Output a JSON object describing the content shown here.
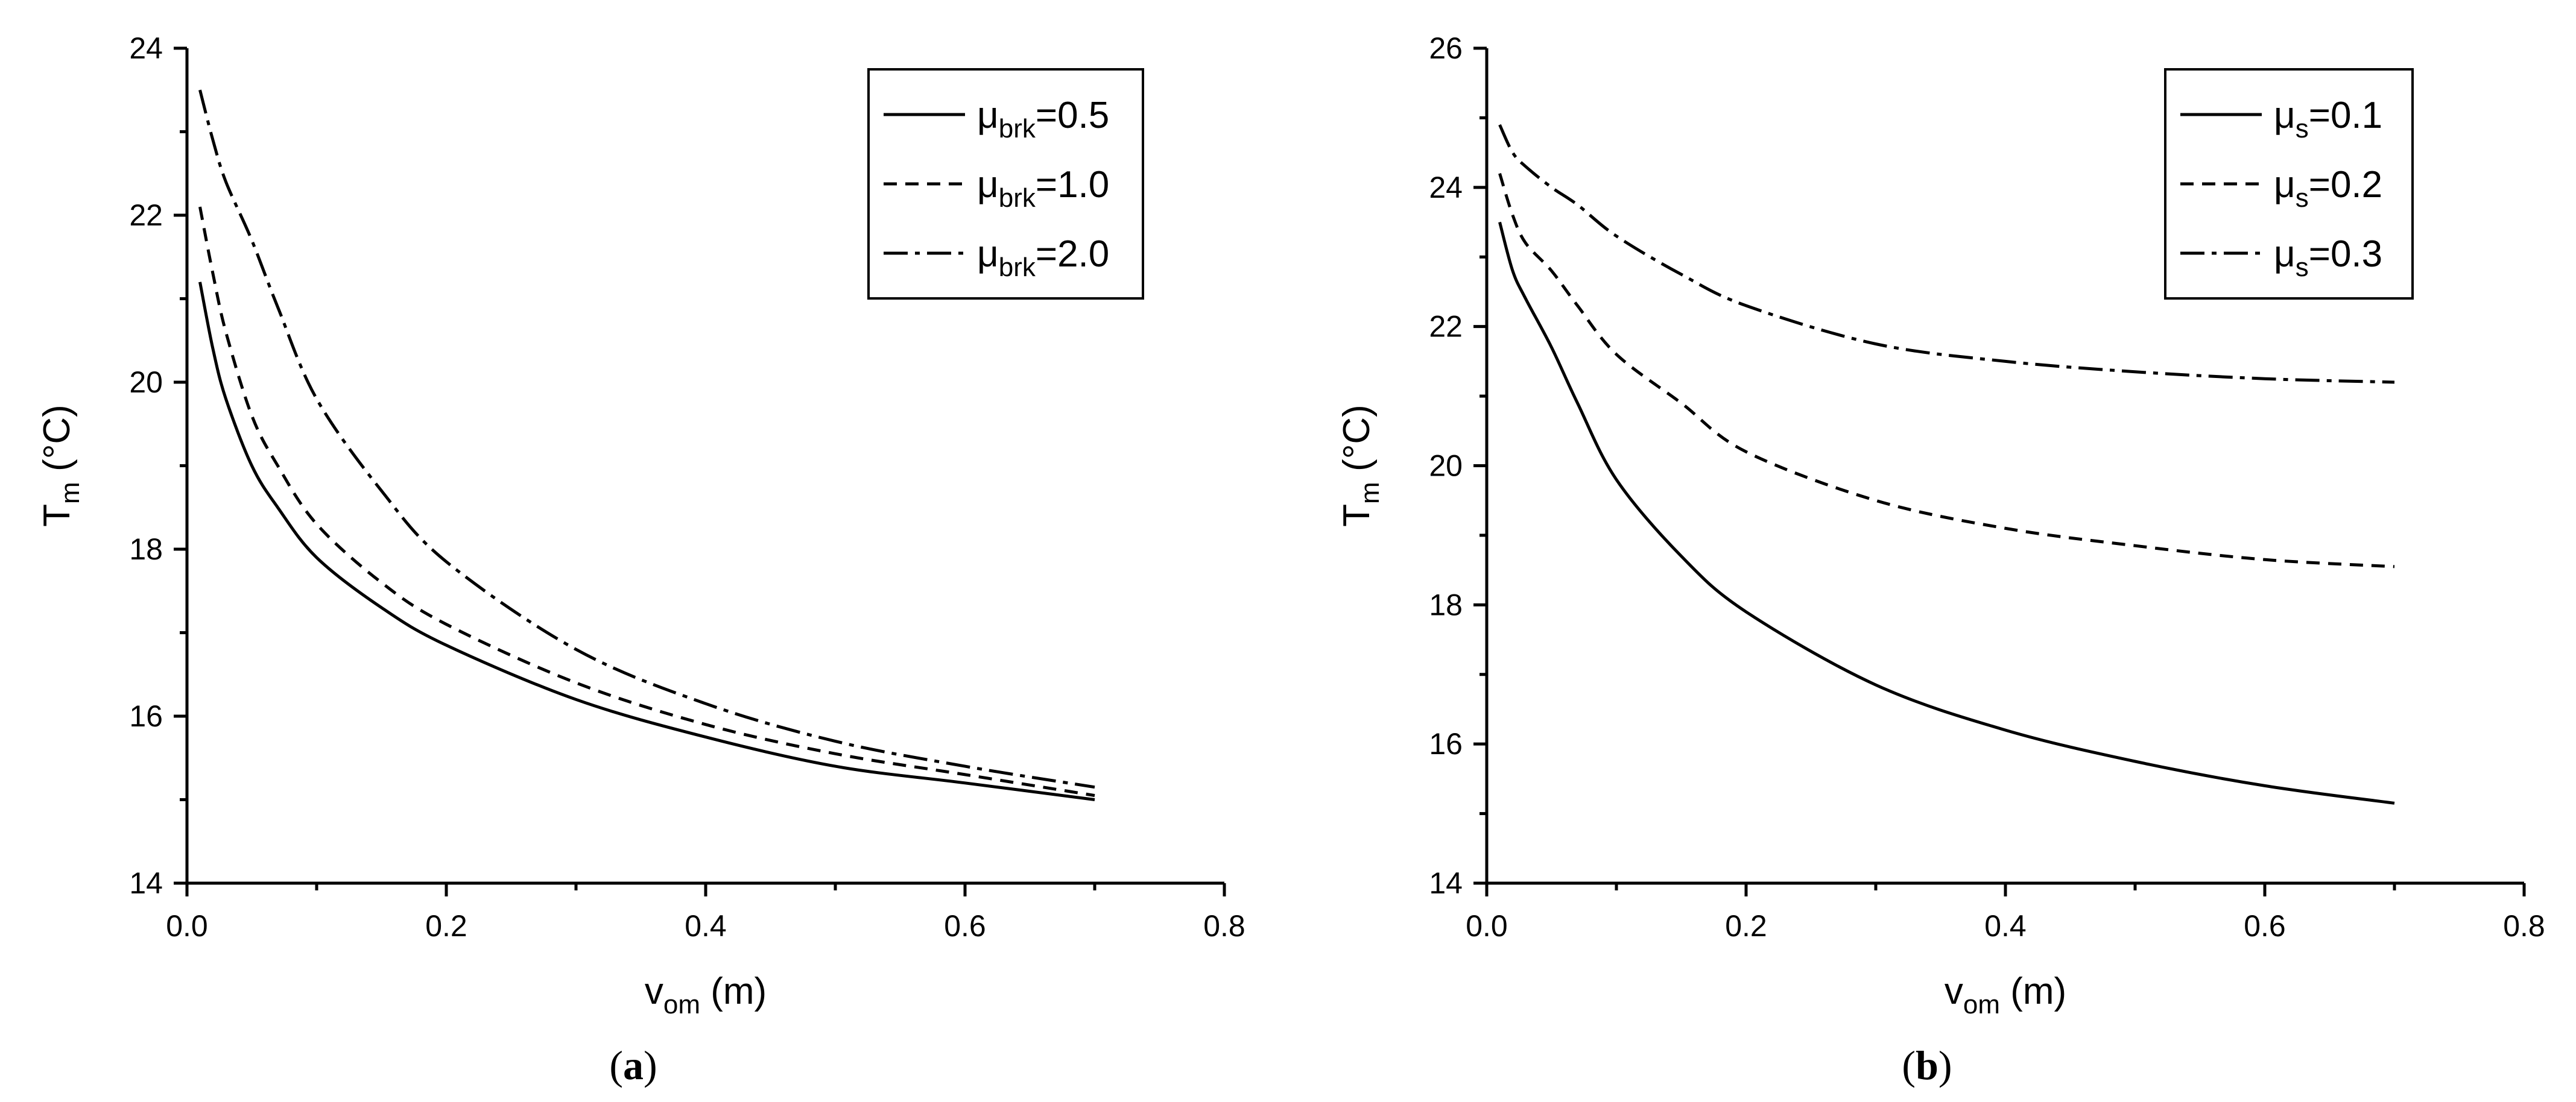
{
  "chart_data": [
    {
      "type": "line",
      "panel_label": {
        "open": "(",
        "letter": "a",
        "close": ")"
      },
      "xlabel": {
        "main": "v",
        "sub": "om",
        "rest": " (m)"
      },
      "ylabel": {
        "main": "T",
        "sub": "m",
        "rest": " (°C)"
      },
      "xlim": [
        0,
        0.8
      ],
      "ylim": [
        14,
        24
      ],
      "xticks": [
        0.0,
        0.2,
        0.4,
        0.6,
        0.8
      ],
      "xtick_labels": [
        "0.0",
        "0.2",
        "0.4",
        "0.6",
        "0.8"
      ],
      "yticks": [
        14,
        16,
        18,
        20,
        22,
        24
      ],
      "ytick_labels": [
        "14",
        "16",
        "18",
        "20",
        "22",
        "24"
      ],
      "legend_position": "top-right",
      "grid": false,
      "series": [
        {
          "label": {
            "main": "μ",
            "sub": "brk",
            "rest": "=0.5"
          },
          "dash": "solid",
          "x": [
            0.01,
            0.02,
            0.03,
            0.05,
            0.07,
            0.1,
            0.15,
            0.2,
            0.3,
            0.4,
            0.5,
            0.6,
            0.7
          ],
          "y": [
            21.2,
            20.4,
            19.8,
            19.0,
            18.5,
            17.9,
            17.3,
            16.85,
            16.2,
            15.75,
            15.4,
            15.2,
            15.0
          ]
        },
        {
          "label": {
            "main": "μ",
            "sub": "brk",
            "rest": "=1.0"
          },
          "dash": "dashed",
          "x": [
            0.01,
            0.02,
            0.03,
            0.05,
            0.07,
            0.1,
            0.15,
            0.2,
            0.3,
            0.4,
            0.5,
            0.6,
            0.7
          ],
          "y": [
            22.1,
            21.3,
            20.6,
            19.6,
            19.0,
            18.3,
            17.6,
            17.1,
            16.4,
            15.9,
            15.55,
            15.3,
            15.05
          ]
        },
        {
          "label": {
            "main": "μ",
            "sub": "brk",
            "rest": "=2.0"
          },
          "dash": "dashdot",
          "x": [
            0.01,
            0.02,
            0.03,
            0.05,
            0.07,
            0.1,
            0.15,
            0.2,
            0.3,
            0.4,
            0.5,
            0.6,
            0.7
          ],
          "y": [
            23.5,
            22.9,
            22.4,
            21.7,
            20.9,
            19.8,
            18.7,
            17.85,
            16.8,
            16.15,
            15.7,
            15.4,
            15.15
          ]
        }
      ]
    },
    {
      "type": "line",
      "panel_label": {
        "open": "(",
        "letter": "b",
        "close": ")"
      },
      "xlabel": {
        "main": "v",
        "sub": "om",
        "rest": " (m)"
      },
      "ylabel": {
        "main": "T",
        "sub": "m",
        "rest": " (°C)"
      },
      "xlim": [
        0,
        0.8
      ],
      "ylim": [
        14,
        26
      ],
      "xticks": [
        0.0,
        0.2,
        0.4,
        0.6,
        0.8
      ],
      "xtick_labels": [
        "0.0",
        "0.2",
        "0.4",
        "0.6",
        "0.8"
      ],
      "yticks": [
        14,
        16,
        18,
        20,
        22,
        24,
        26
      ],
      "ytick_labels": [
        "14",
        "16",
        "18",
        "20",
        "22",
        "24",
        "26"
      ],
      "legend_position": "top-right",
      "grid": false,
      "series": [
        {
          "label": {
            "main": "μ",
            "sub": "s",
            "rest": "=0.1"
          },
          "dash": "solid",
          "x": [
            0.01,
            0.02,
            0.03,
            0.05,
            0.07,
            0.1,
            0.15,
            0.2,
            0.3,
            0.4,
            0.5,
            0.6,
            0.7
          ],
          "y": [
            23.5,
            22.8,
            22.4,
            21.7,
            20.9,
            19.8,
            18.7,
            17.9,
            16.85,
            16.2,
            15.75,
            15.4,
            15.15
          ]
        },
        {
          "label": {
            "main": "μ",
            "sub": "s",
            "rest": "=0.2"
          },
          "dash": "dashed",
          "x": [
            0.01,
            0.02,
            0.03,
            0.05,
            0.07,
            0.1,
            0.15,
            0.2,
            0.3,
            0.4,
            0.5,
            0.6,
            0.7
          ],
          "y": [
            24.2,
            23.6,
            23.2,
            22.8,
            22.3,
            21.6,
            20.9,
            20.2,
            19.5,
            19.1,
            18.85,
            18.65,
            18.55
          ]
        },
        {
          "label": {
            "main": "μ",
            "sub": "s",
            "rest": "=0.3"
          },
          "dash": "dashdot",
          "x": [
            0.01,
            0.02,
            0.03,
            0.05,
            0.07,
            0.1,
            0.15,
            0.2,
            0.3,
            0.4,
            0.5,
            0.6,
            0.7
          ],
          "y": [
            24.9,
            24.5,
            24.3,
            24.0,
            23.75,
            23.3,
            22.75,
            22.3,
            21.75,
            21.5,
            21.35,
            21.25,
            21.2
          ]
        }
      ]
    }
  ]
}
